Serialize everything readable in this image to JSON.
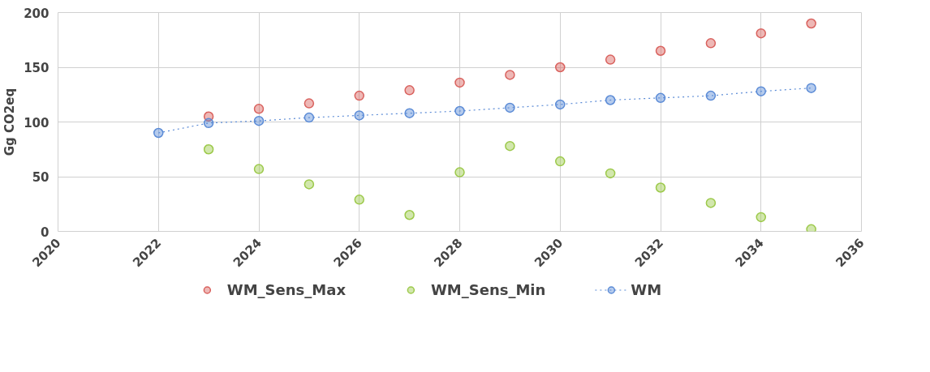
{
  "chart_data": {
    "type": "scatter",
    "ylabel": "Gg CO2eq",
    "x": [
      2022,
      2023,
      2024,
      2025,
      2026,
      2027,
      2028,
      2029,
      2030,
      2031,
      2032,
      2033,
      2034,
      2035
    ],
    "series": [
      {
        "name": "WM_Sens_Max",
        "color": "#d9625e",
        "values": [
          null,
          105,
          112,
          117,
          124,
          129,
          136,
          143,
          150,
          157,
          165,
          172,
          181,
          190
        ]
      },
      {
        "name": "WM_Sens_Min",
        "color": "#9cc94a",
        "values": [
          null,
          75,
          57,
          43,
          29,
          15,
          54,
          78,
          64,
          53,
          40,
          26,
          13,
          2
        ]
      },
      {
        "name": "WM",
        "type": "line",
        "line_style": "dotted",
        "color": "#5b8bd6",
        "values": [
          90,
          99,
          101,
          104,
          106,
          108,
          110,
          113,
          116,
          120,
          122,
          124,
          128,
          131
        ]
      }
    ],
    "xlim": [
      2020,
      2036
    ],
    "xticks": [
      2020,
      2022,
      2024,
      2026,
      2028,
      2030,
      2032,
      2034,
      2036
    ],
    "ylim": [
      0,
      200
    ],
    "yticks": [
      0,
      50,
      100,
      150,
      200
    ],
    "grid": true,
    "legend": "bottom",
    "marker": "circle"
  }
}
